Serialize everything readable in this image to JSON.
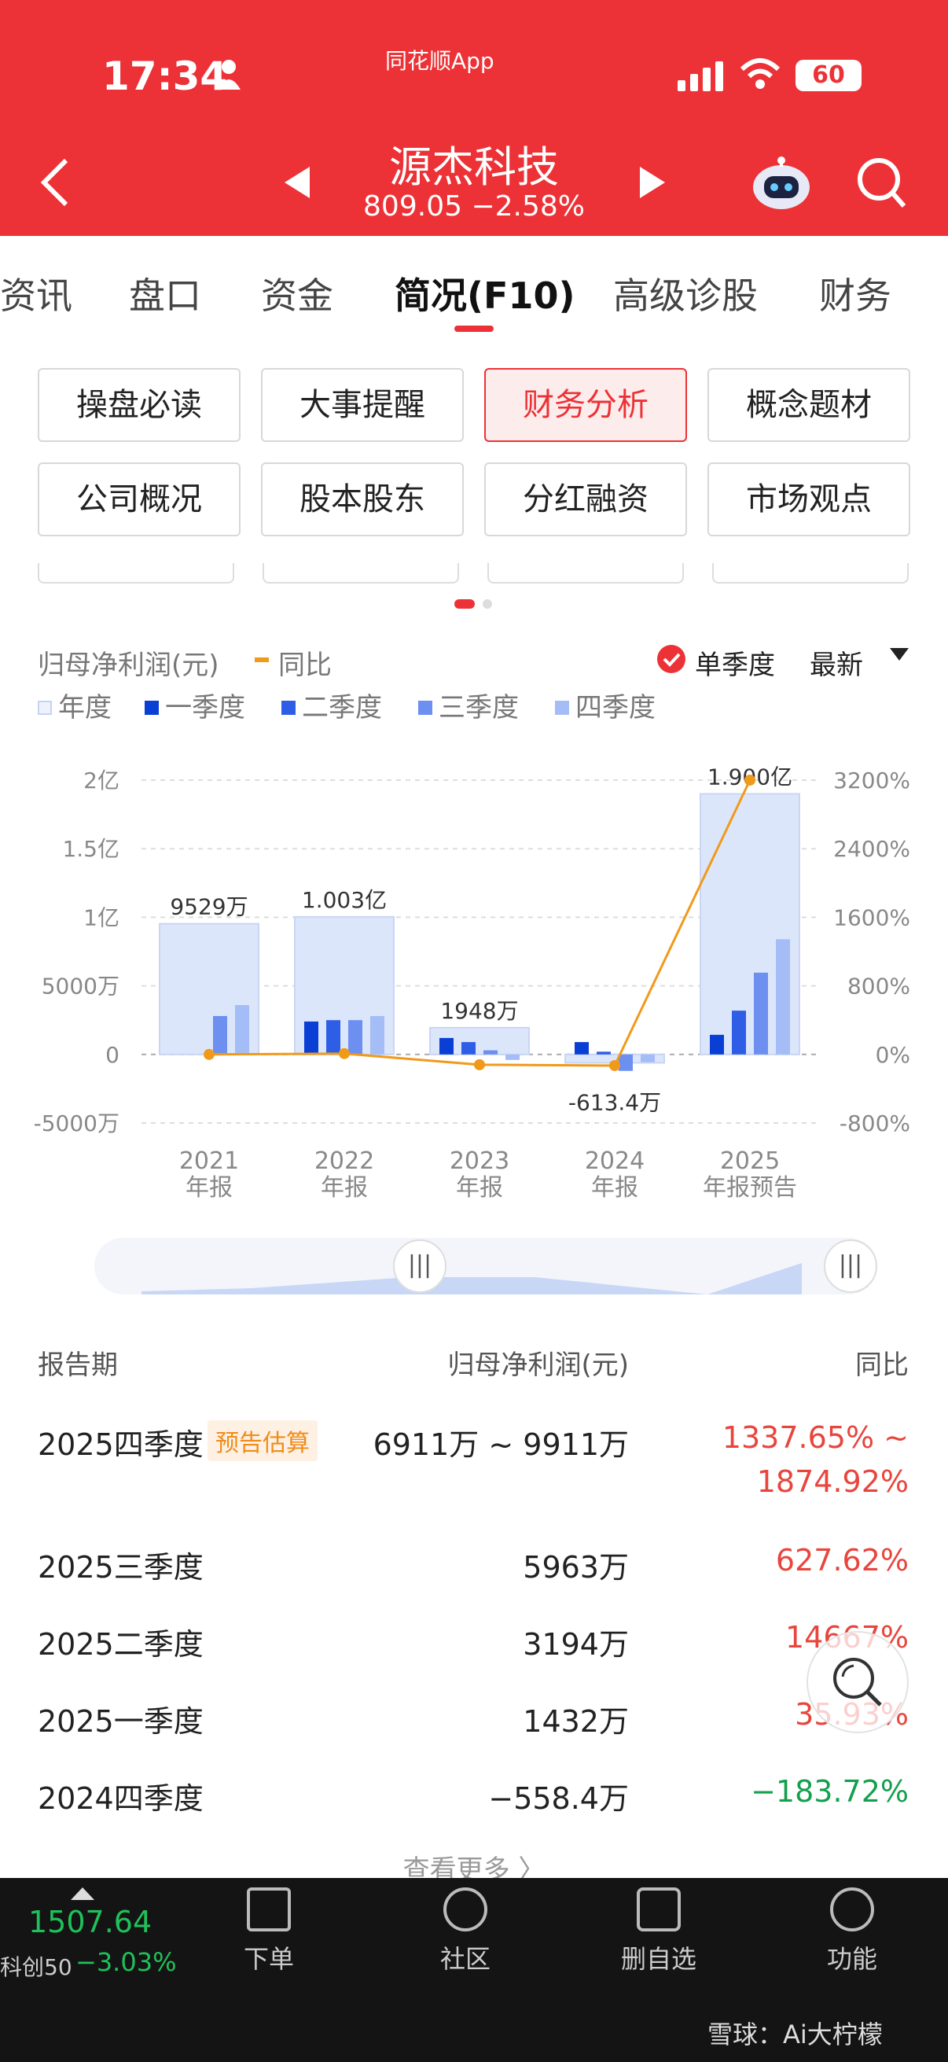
{
  "status": {
    "time": "17:34",
    "battery": "60"
  },
  "header": {
    "app": "同花顺App",
    "stock_name": "源杰科技",
    "price_change": "809.05 −2.58%"
  },
  "tabs": [
    "资讯",
    "盘口",
    "资金",
    "简况(F10)",
    "高级诊股",
    "财务"
  ],
  "function_buttons": [
    "操盘必读",
    "大事提醒",
    "财务分析",
    "概念题材",
    "公司概况",
    "股本股东",
    "分红融资",
    "市场观点"
  ],
  "chart_header": {
    "metric": "归母净利润(元)",
    "yoy": "同比",
    "single_quarter": "单季度",
    "sort": "最新"
  },
  "legend": [
    "年度",
    "一季度",
    "二季度",
    "三季度",
    "四季度"
  ],
  "chart_data": {
    "type": "bar",
    "categories": [
      "2021\n年报",
      "2022\n年报",
      "2023\n年报",
      "2024\n年报",
      "2025\n年报预告"
    ],
    "y_left_ticks": [
      "2亿",
      "1.5亿",
      "1亿",
      "5000万",
      "0",
      "-5000万"
    ],
    "y_right_ticks": [
      "3200%",
      "2400%",
      "1600%",
      "800%",
      "0%",
      "-800%"
    ],
    "ylim": [
      -5000,
      20000
    ],
    "y2lim": [
      -800,
      3200
    ],
    "annual_labels": [
      "9529万",
      "1.003亿",
      "1948万",
      "-613.4万",
      "1.900亿"
    ],
    "series": [
      {
        "name": "年度",
        "values": [
          9529,
          10030,
          1948,
          -613.4,
          19000
        ]
      },
      {
        "name": "一季度",
        "values": [
          0,
          2400,
          1200,
          900,
          1432
        ]
      },
      {
        "name": "二季度",
        "values": [
          0,
          2500,
          900,
          200,
          3194
        ]
      },
      {
        "name": "三季度",
        "values": [
          2800,
          2500,
          300,
          -1200,
          5963
        ]
      },
      {
        "name": "四季度",
        "values": [
          3600,
          2800,
          -400,
          -558.4,
          8400
        ]
      }
    ],
    "line": {
      "name": "同比",
      "values": [
        0,
        10,
        -120,
        -130,
        3200
      ]
    },
    "colors": {
      "annual": "#dce6fb",
      "q1": "#0a3fd6",
      "q2": "#2f5ee6",
      "q3": "#6c8ff0",
      "q4": "#a5bdf6",
      "line": "#f09a1a"
    }
  },
  "table": {
    "headers": [
      "报告期",
      "归母净利润(元)",
      "同比"
    ],
    "badge": "预告估算",
    "rows": [
      {
        "period": "2025四季度",
        "value": "6911万 ~ 9911万",
        "yoy": "1337.65% ~",
        "yoy2": "1874.92%"
      },
      {
        "period": "2025三季度",
        "value": "5963万",
        "yoy": "627.62%"
      },
      {
        "period": "2025二季度",
        "value": "3194万",
        "yoy": "14667%"
      },
      {
        "period": "2025一季度",
        "value": "1432万",
        "yoy": "35.93%"
      },
      {
        "period": "2024四季度",
        "value": "−558.4万",
        "yoy": "−183.72%"
      }
    ],
    "more": "查看更多 〉"
  },
  "bottom": {
    "index_value": "1507.64",
    "index_name": "科创50",
    "index_change": "−3.03%",
    "nav": [
      "下单",
      "社区",
      "删自选",
      "功能"
    ],
    "watermark": "雪球：Ai大柠檬"
  }
}
